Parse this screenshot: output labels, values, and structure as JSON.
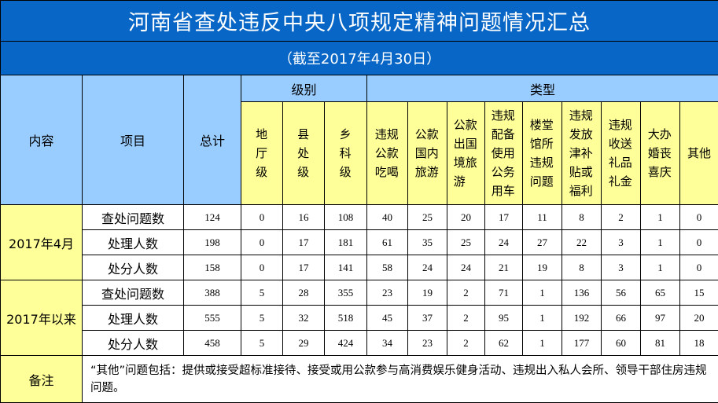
{
  "title": "河南省查处违反中央八项规定精神问题情况汇总",
  "subtitle": "（截至2017年4月30日）",
  "headers": {
    "content": "内容",
    "item": "项目",
    "total": "总计",
    "level": "级别",
    "type": "类型",
    "level_cols": [
      "地厅级",
      "县处级",
      "乡科级"
    ],
    "type_cols": [
      "违规公款吃喝",
      "公款国内旅游",
      "公款出国境旅游",
      "违规配备使用公务用车",
      "楼堂馆所违规问题",
      "违规发放津补贴或福利",
      "违规收送礼品礼金",
      "大办婚丧喜庆",
      "其他"
    ]
  },
  "groups": [
    {
      "label": "2017年4月",
      "rows": [
        {
          "item": "查处问题数",
          "values": [
            "124",
            "0",
            "16",
            "108",
            "40",
            "25",
            "20",
            "17",
            "11",
            "8",
            "2",
            "1",
            "0"
          ]
        },
        {
          "item": "处理人数",
          "values": [
            "198",
            "0",
            "17",
            "181",
            "61",
            "35",
            "25",
            "24",
            "27",
            "22",
            "3",
            "1",
            "0"
          ]
        },
        {
          "item": "处分人数",
          "values": [
            "158",
            "0",
            "17",
            "141",
            "58",
            "24",
            "24",
            "21",
            "19",
            "8",
            "3",
            "1",
            "0"
          ]
        }
      ]
    },
    {
      "label": "2017年以来",
      "rows": [
        {
          "item": "查处问题数",
          "values": [
            "388",
            "5",
            "28",
            "355",
            "23",
            "19",
            "2",
            "71",
            "1",
            "136",
            "56",
            "65",
            "15"
          ]
        },
        {
          "item": "处理人数",
          "values": [
            "555",
            "5",
            "32",
            "518",
            "45",
            "37",
            "2",
            "95",
            "1",
            "192",
            "66",
            "97",
            "20"
          ]
        },
        {
          "item": "处分人数",
          "values": [
            "458",
            "5",
            "29",
            "424",
            "34",
            "23",
            "2",
            "62",
            "1",
            "177",
            "60",
            "81",
            "18"
          ]
        }
      ]
    }
  ],
  "note": {
    "label": "备注",
    "text": "“其他”问题包括：提供或接受超标准接待、接受或用公款参与高消费娱乐健身活动、违规出入私人会所、领导干部住房违规问题。"
  },
  "colors": {
    "title_bg": "#0866c6",
    "header_bg": "#99ccff",
    "highlight_bg": "#ffff99"
  }
}
